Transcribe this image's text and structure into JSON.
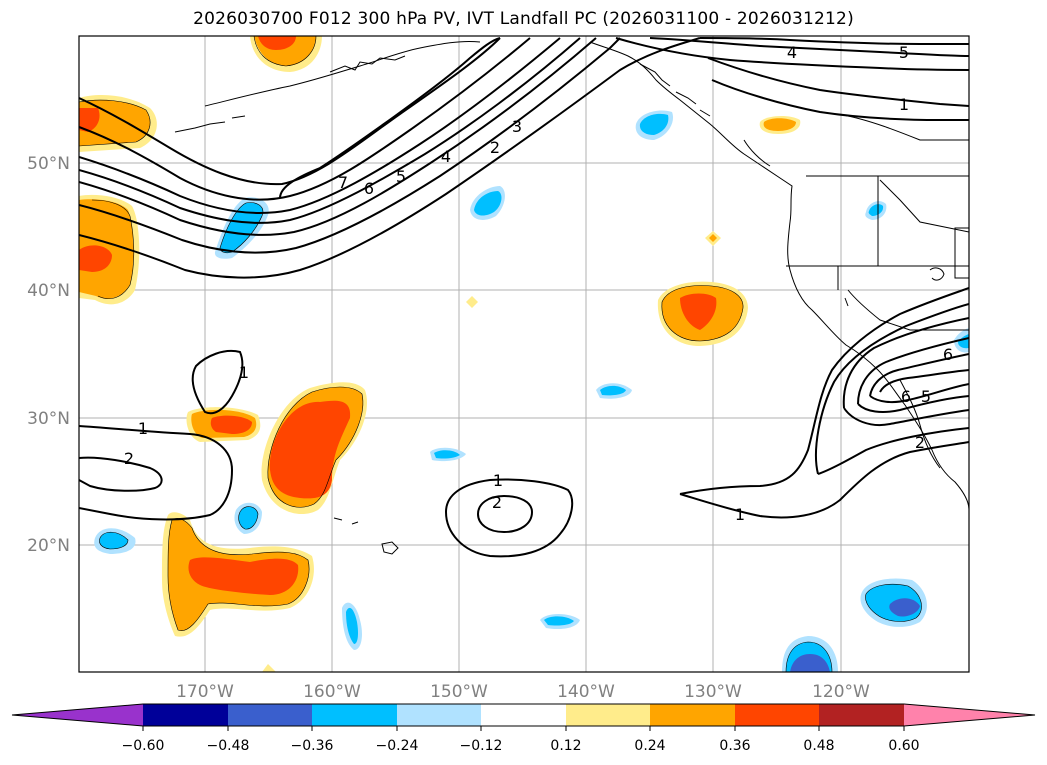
{
  "title": "2026030700 F012 300 hPa PV, IVT Landfall PC (2026031100 - 2026031212)",
  "map": {
    "lon_ticks": [
      "170°W",
      "160°W",
      "150°W",
      "140°W",
      "130°W",
      "120°W"
    ],
    "lat_ticks": [
      "50°N",
      "40°N",
      "30°N",
      "20°N"
    ],
    "tick_color": "#808080"
  },
  "contours": {
    "pv_labels": [
      {
        "text": "1",
        "lon": -174.9,
        "lat": 29.3
      },
      {
        "text": "2",
        "lon": -174.0,
        "lat": 26.7
      },
      {
        "text": "1",
        "lon": -164.9,
        "lat": 33.7
      },
      {
        "text": "7",
        "lon": -159.4,
        "lat": 50.0
      },
      {
        "text": "6",
        "lon": -157.5,
        "lat": 49.3
      },
      {
        "text": "5",
        "lon": -155.8,
        "lat": 49.9
      },
      {
        "text": "4",
        "lon": -153.2,
        "lat": 52.0
      },
      {
        "text": "2",
        "lon": -147.2,
        "lat": 52.8
      },
      {
        "text": "3",
        "lon": -145.4,
        "lat": 54.6
      },
      {
        "text": "4",
        "lon": -124.2,
        "lat": 60.7
      },
      {
        "text": "5",
        "lon": -115.4,
        "lat": 60.7
      },
      {
        "text": "1",
        "lon": -115.3,
        "lat": 57.2
      },
      {
        "text": "1",
        "lon": -147.0,
        "lat": 25.2
      },
      {
        "text": "2",
        "lon": -147.0,
        "lat": 23.5
      },
      {
        "text": "1",
        "lon": -127.9,
        "lat": 22.1
      },
      {
        "text": "6",
        "lon": -111.1,
        "lat": 34.7
      },
      {
        "text": "6",
        "lon": -114.7,
        "lat": 31.8
      },
      {
        "text": "5",
        "lon": -113.4,
        "lat": 31.8
      },
      {
        "text": "2",
        "lon": -114.2,
        "lat": 28.2
      }
    ]
  },
  "colorbar": {
    "tick_labels": [
      "−0.60",
      "−0.48",
      "−0.36",
      "−0.24",
      "−0.12",
      "0.12",
      "0.24",
      "0.36",
      "0.48",
      "0.60"
    ],
    "colors": [
      "#9932cc",
      "#000099",
      "#3a5fcd",
      "#00bfff",
      "#b0e2ff",
      "#ffffff",
      "#ffec8b",
      "#ffa500",
      "#ff4500",
      "#b22222",
      "#ff82ab"
    ]
  },
  "legend": {
    "fill_colors": {
      "neg_strong": "#3a5fcd",
      "neg_mid": "#00bfff",
      "neg_weak": "#b0e2ff",
      "pos_weak": "#ffec8b",
      "pos_mid": "#ffa500",
      "pos_strong": "#ff4500"
    }
  }
}
